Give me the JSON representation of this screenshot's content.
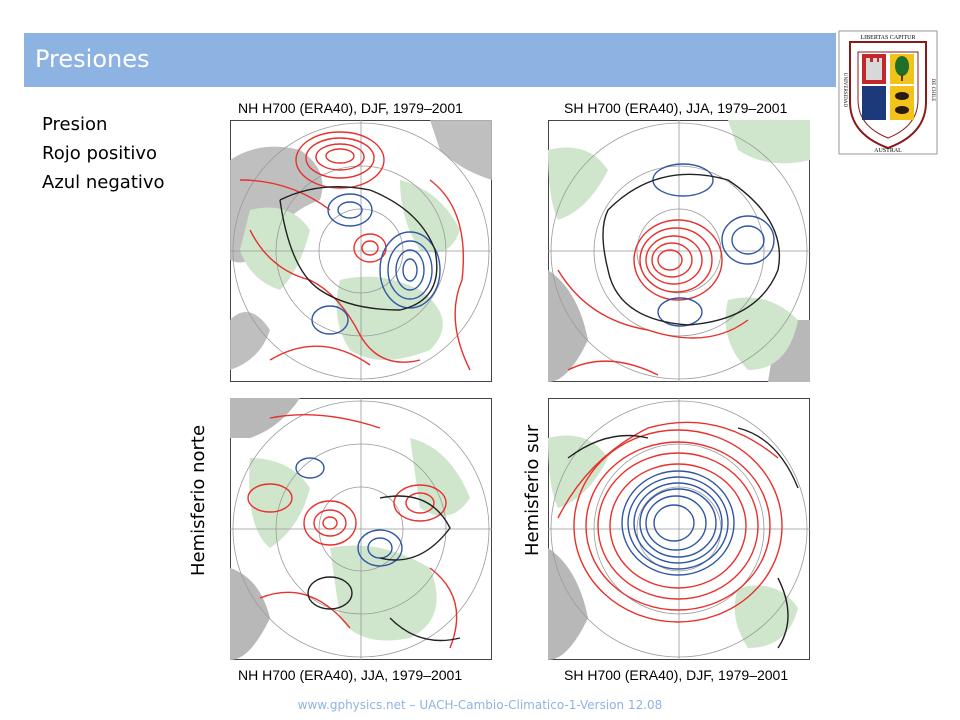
{
  "slide": {
    "title": "Presiones",
    "footer": "www.gphysics.net – UACH-Cambio-Climatico-1-Version 12.08"
  },
  "crest": {
    "top_text": "LIBERTAS CAPITUR",
    "left_text": "UNIVERSIDAD",
    "right_text": "DE CHILE",
    "bottom_text": "AUSTRAL"
  },
  "legend": {
    "line1": "Presion",
    "line2": "Rojo positivo",
    "line3": "Azul negativo"
  },
  "labels": {
    "north": "Hemisferio norte",
    "south": "Hemisferio sur"
  },
  "maps": [
    {
      "title": "NH H700 (ERA40), DJF, 1979–2001"
    },
    {
      "title": "SH H700 (ERA40), JJA, 1979–2001"
    },
    {
      "title": "NH H700 (ERA40), JJA, 1979–2001"
    },
    {
      "title": "SH H700 (ERA40), DJF, 1979–2001"
    }
  ],
  "colors": {
    "header": "#8db3e2",
    "positive": "#e8302c",
    "negative": "#2f56a6",
    "zero": "#222222",
    "land": "#cfe6cc",
    "missing": "#b8b8b8"
  }
}
